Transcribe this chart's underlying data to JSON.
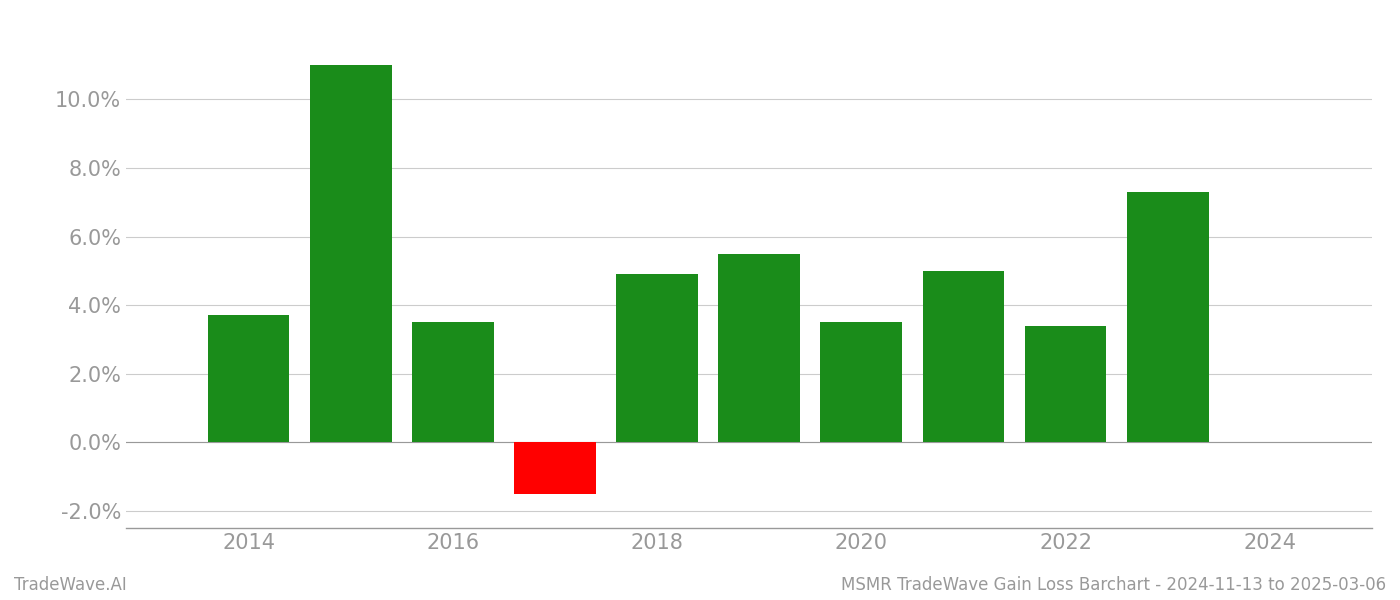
{
  "years": [
    2014,
    2015,
    2016,
    2017,
    2018,
    2019,
    2020,
    2021,
    2022,
    2023
  ],
  "values": [
    0.037,
    0.11,
    0.035,
    -0.015,
    0.049,
    0.055,
    0.035,
    0.05,
    0.034,
    0.073
  ],
  "bar_colors": [
    "#1a8c1a",
    "#1a8c1a",
    "#1a8c1a",
    "#ff0000",
    "#1a8c1a",
    "#1a8c1a",
    "#1a8c1a",
    "#1a8c1a",
    "#1a8c1a",
    "#1a8c1a"
  ],
  "ylabel": "",
  "xlabel": "",
  "ylim": [
    -0.025,
    0.122
  ],
  "yticks": [
    -0.02,
    0.0,
    0.02,
    0.04,
    0.06,
    0.08,
    0.1
  ],
  "xtick_labels": [
    "2014",
    "2016",
    "2018",
    "2020",
    "2022",
    "2024"
  ],
  "xtick_positions": [
    2014,
    2016,
    2018,
    2020,
    2022,
    2024
  ],
  "xlim": [
    2012.8,
    2025.0
  ],
  "title": "",
  "footer_left": "TradeWave.AI",
  "footer_right": "MSMR TradeWave Gain Loss Barchart - 2024-11-13 to 2025-03-06",
  "bar_width": 0.8,
  "background_color": "#ffffff",
  "grid_color": "#cccccc",
  "tick_label_color": "#999999",
  "footer_color": "#999999",
  "spine_color": "#999999"
}
